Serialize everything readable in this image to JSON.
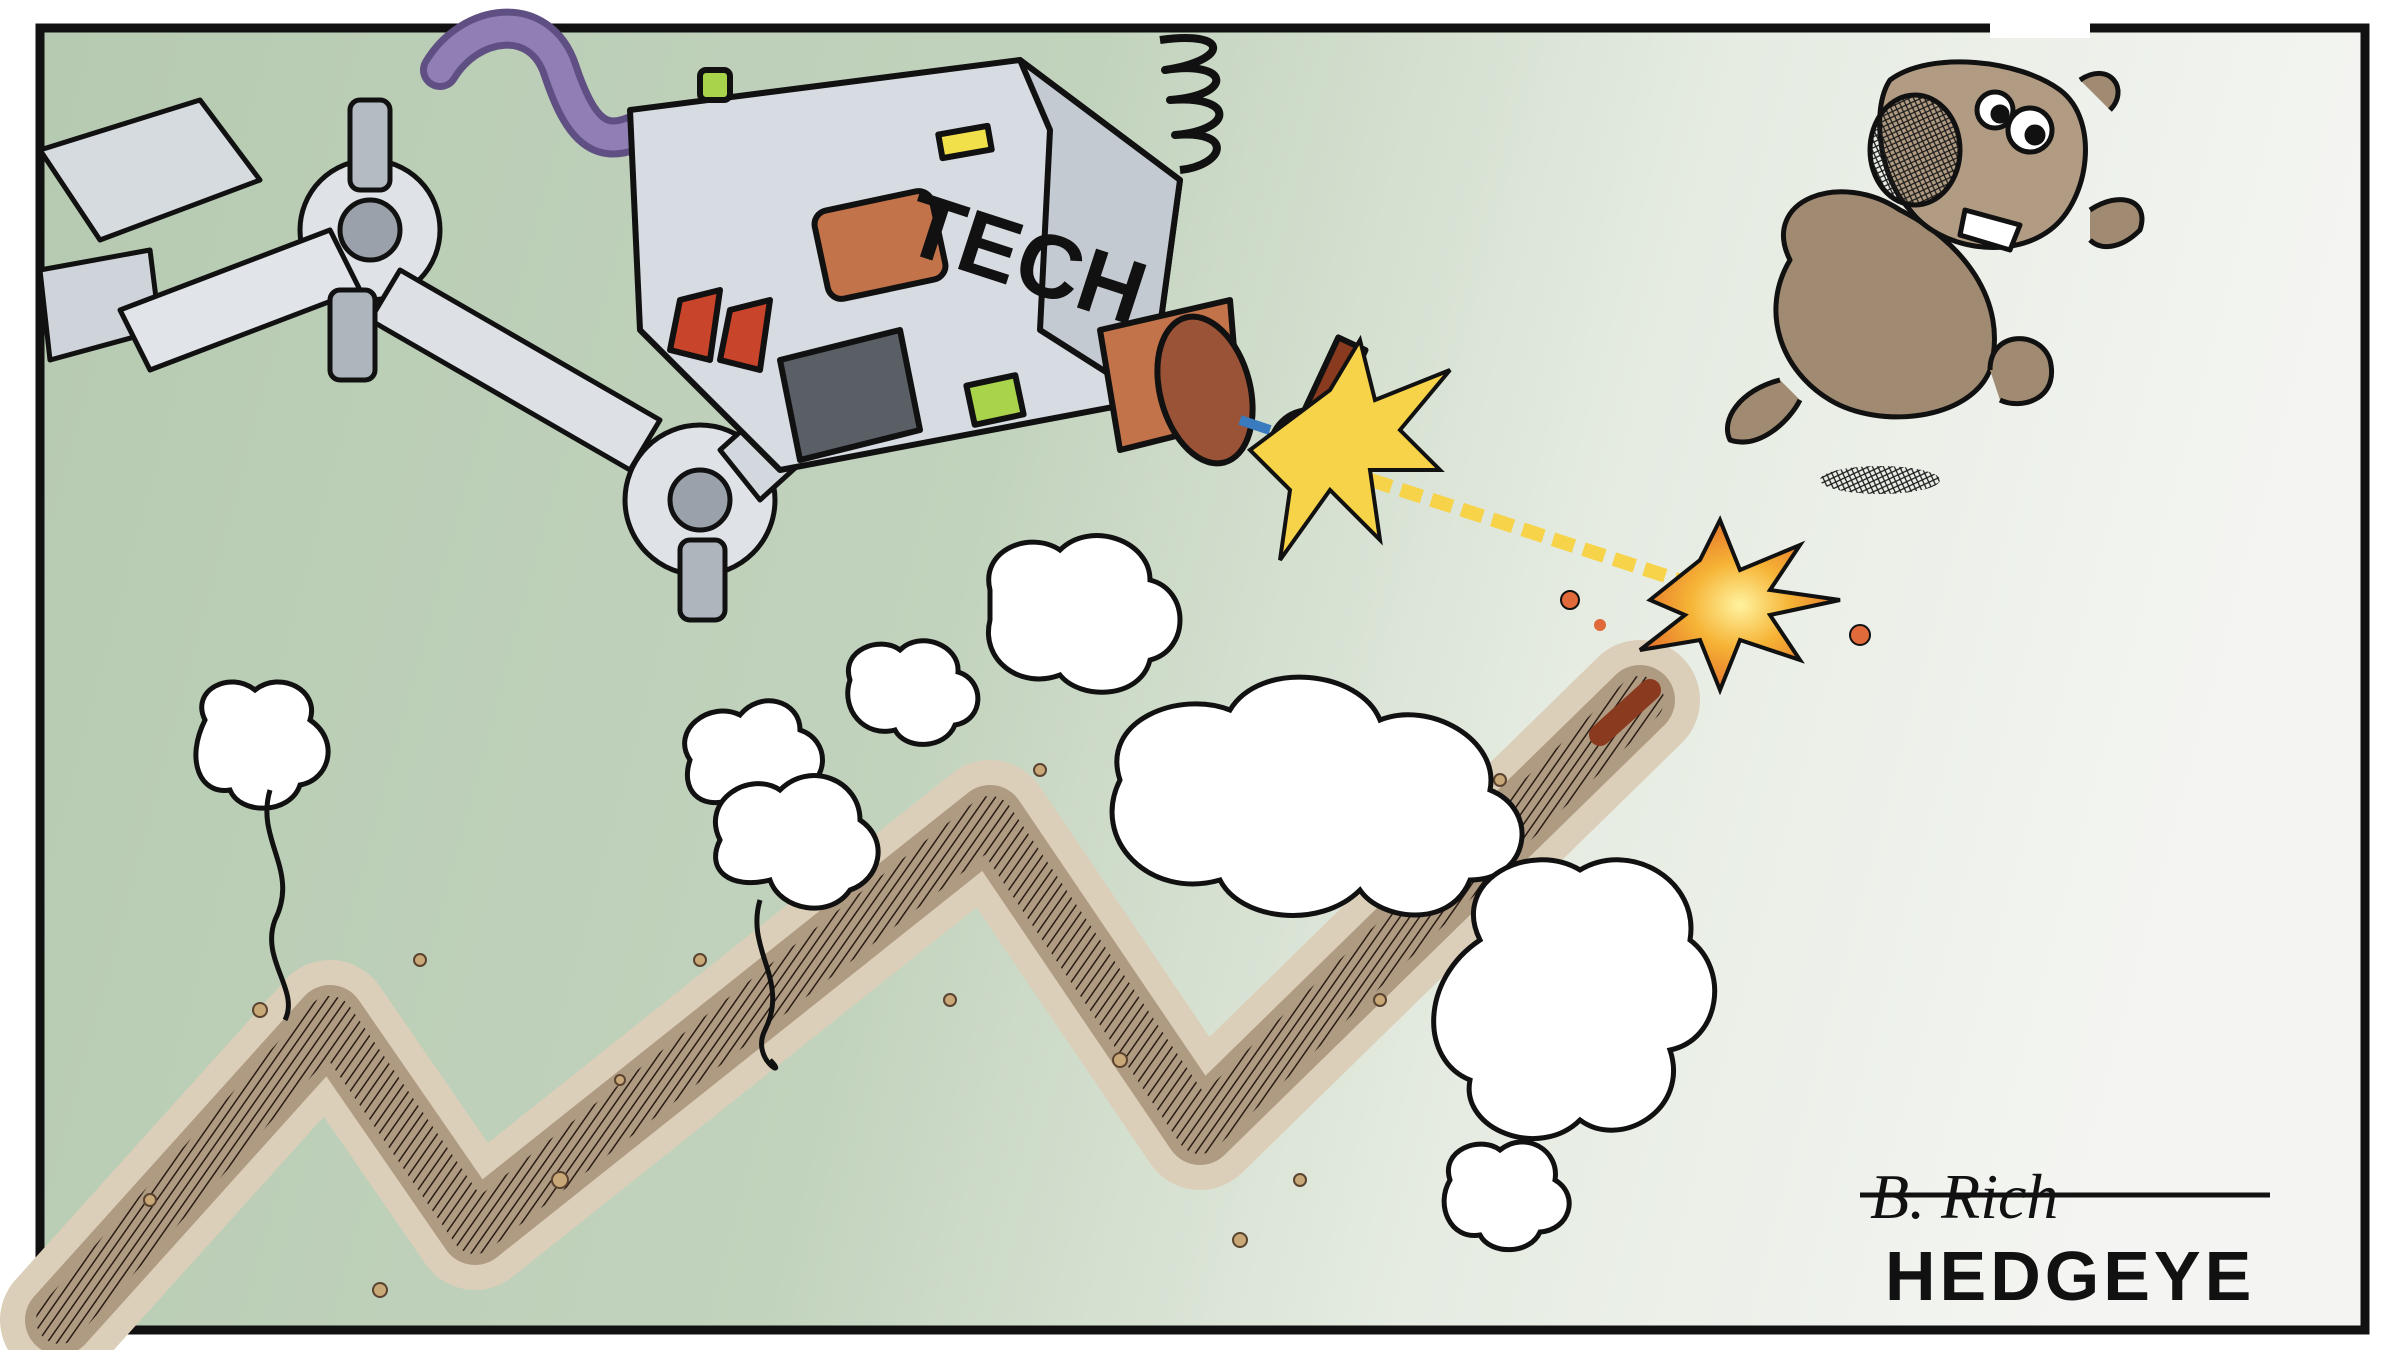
{
  "cartoon": {
    "machine_label": "TECH",
    "signature": "B. Rich",
    "brand": "HEDGEYE"
  },
  "colors": {
    "sky_green": "#b9ccb4",
    "sky_light": "#f0f2ee",
    "metal": "#d9dde2",
    "metal_dark": "#8c929a",
    "hose_purple": "#7b6a9c",
    "copper": "#c2734a",
    "laser": "#f7d34a",
    "bear": "#a08b72",
    "trail": "#dcd0bd",
    "ink": "#1a1a1a",
    "yellow_light": "#f2e04a",
    "green_light": "#a9d34b",
    "red_accent": "#c8442a"
  },
  "icons": [
    "robot-arm-icon",
    "laser-tool-icon",
    "bear-icon",
    "chart-trail-icon",
    "smoke-cloud-icon",
    "spark-icon"
  ]
}
